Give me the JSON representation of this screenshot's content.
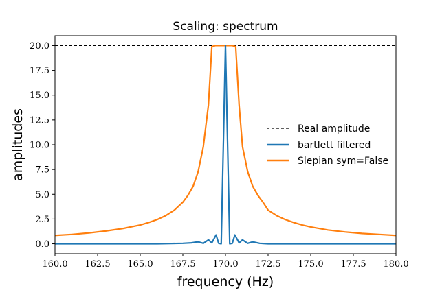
{
  "chart_data": {
    "type": "line",
    "title": "Scaling: spectrum",
    "xlabel": "frequency (Hz)",
    "ylabel": "amplitudes",
    "xlim": [
      160.0,
      180.0
    ],
    "ylim": [
      -1.0,
      21.0
    ],
    "x_ticks": [
      "160.0",
      "162.5",
      "165.0",
      "167.5",
      "170.0",
      "172.5",
      "175.0",
      "177.5",
      "180.0"
    ],
    "y_ticks": [
      "0.0",
      "2.5",
      "5.0",
      "7.5",
      "10.0",
      "12.5",
      "15.0",
      "17.5",
      "20.0"
    ],
    "x_tick_values": [
      160.0,
      162.5,
      165.0,
      167.5,
      170.0,
      172.5,
      175.0,
      177.5,
      180.0
    ],
    "y_tick_values": [
      0.0,
      2.5,
      5.0,
      7.5,
      10.0,
      12.5,
      15.0,
      17.5,
      20.0
    ],
    "grid": false,
    "legend_position": "center-right",
    "reference_line": {
      "name": "Real amplitude",
      "y": 20.0,
      "style": "dashed",
      "color": "#000000"
    },
    "series": [
      {
        "name": "bartlett filtered",
        "color": "#1f77b4",
        "x": [
          160.0,
          163.0,
          166.0,
          167.5,
          168.0,
          168.4,
          168.7,
          169.0,
          169.2,
          169.45,
          169.6,
          169.75,
          170.0,
          170.25,
          170.4,
          170.55,
          170.8,
          171.0,
          171.3,
          171.6,
          172.0,
          172.5,
          174.0,
          177.0,
          180.0
        ],
        "y": [
          0.0,
          0.0,
          0.0,
          0.05,
          0.1,
          0.2,
          0.05,
          0.4,
          0.1,
          0.9,
          0.05,
          0.0,
          20.0,
          0.0,
          0.05,
          0.9,
          0.1,
          0.4,
          0.05,
          0.2,
          0.05,
          0.0,
          0.0,
          0.0,
          0.0
        ]
      },
      {
        "name": "Slepian sym=False",
        "color": "#ff7f0e",
        "x": [
          160.0,
          161.0,
          162.0,
          163.0,
          164.0,
          165.0,
          165.5,
          166.0,
          166.5,
          167.0,
          167.5,
          167.8,
          168.1,
          168.4,
          168.7,
          169.0,
          169.2,
          169.4,
          169.6,
          169.8,
          170.0,
          170.2,
          170.4,
          170.6,
          170.8,
          171.0,
          171.3,
          171.6,
          171.9,
          172.2,
          172.5,
          173.0,
          173.5,
          174.0,
          174.5,
          175.0,
          176.0,
          177.0,
          178.0,
          179.0,
          180.0
        ],
        "y": [
          0.85,
          0.95,
          1.1,
          1.3,
          1.55,
          1.9,
          2.15,
          2.45,
          2.85,
          3.4,
          4.2,
          4.9,
          5.8,
          7.3,
          9.8,
          14.0,
          19.9,
          20.0,
          20.0,
          20.0,
          20.0,
          20.0,
          20.0,
          19.9,
          14.0,
          9.8,
          7.3,
          5.8,
          4.9,
          4.2,
          3.4,
          2.85,
          2.45,
          2.15,
          1.9,
          1.7,
          1.4,
          1.2,
          1.05,
          0.95,
          0.85
        ]
      }
    ]
  }
}
